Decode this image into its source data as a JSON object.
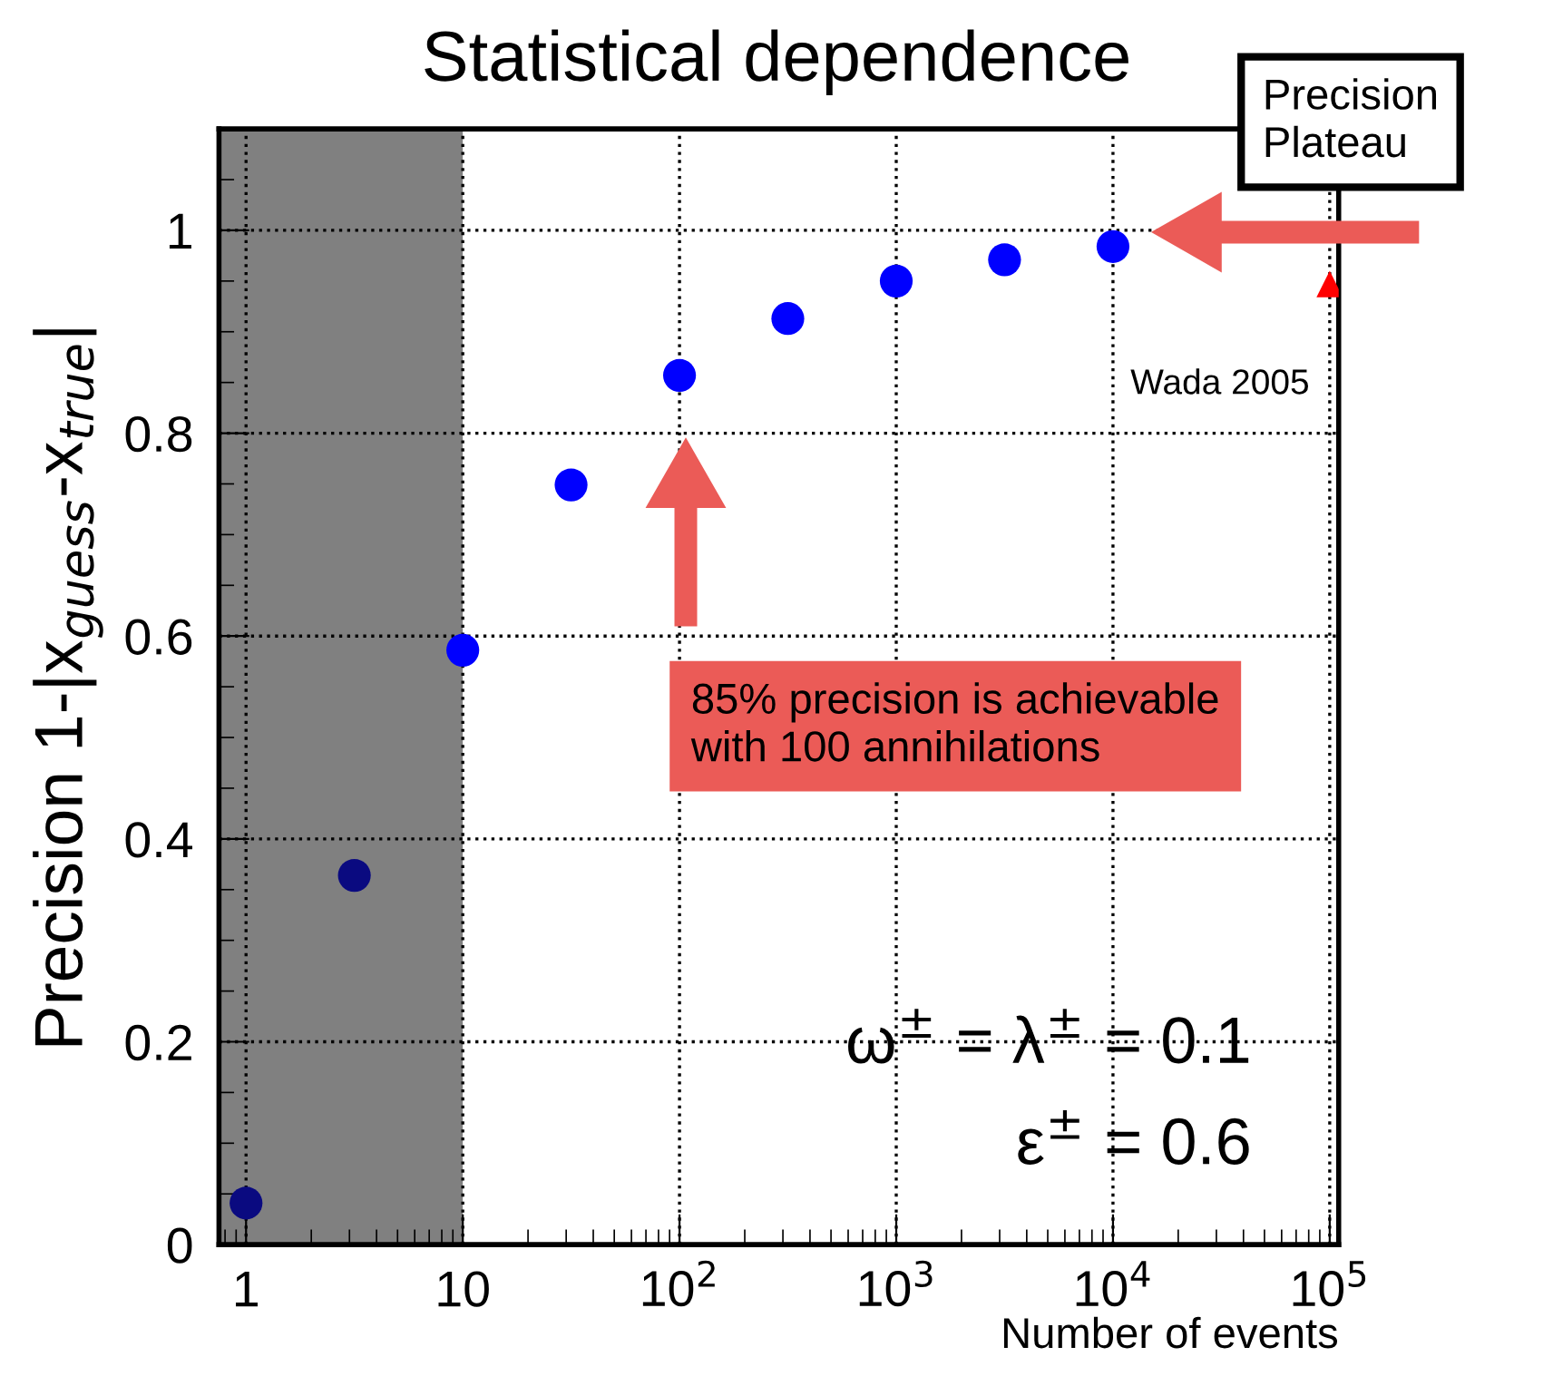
{
  "chart_data": {
    "type": "scatter",
    "title": "Statistical dependence",
    "xlabel": "Number of events",
    "ylabel": "Precision 1-|x$_{guess}$-x$_{true}$|",
    "log": "x",
    "grid": true,
    "marker": "circle",
    "xlim": [
      0.75,
      110000
    ],
    "xticks": [
      1,
      10,
      {
        "value": 100,
        "label": "10$^{2}$"
      },
      {
        "value": 1000,
        "label": "10$^{3}$"
      },
      {
        "value": 10000,
        "label": "10$^{4}$"
      },
      {
        "value": 100000,
        "label": "10$^{5}$"
      }
    ],
    "ylim": [
      0,
      1.1
    ],
    "yticks": [
      0,
      0.2,
      0.4,
      0.6,
      0.8,
      1
    ],
    "series": [
      {
        "x": [
          1,
          3.16,
          10,
          31.6,
          100,
          316,
          1000,
          3160,
          10000
        ],
        "values": [
          0.041,
          0.364,
          0.586,
          0.749,
          0.857,
          0.913,
          0.95,
          0.971,
          0.984
        ],
        "colors": [
          "#0a0a80",
          "#0a0a80",
          "#0000ff",
          "#0000ff",
          "#0000ff",
          "#0000ff",
          "#0000ff",
          "#0000ff",
          "#0000ff"
        ]
      },
      {
        "name": "Wada 2005",
        "x": [
          100000
        ],
        "values": [
          0.947
        ],
        "color": "#ff0000",
        "marker": "triangle"
      }
    ],
    "bands": [
      {
        "axis": "x",
        "from": 0.75,
        "to": 10,
        "color": "#808080"
      }
    ],
    "annotations": [
      "85% precision is achievable\nwith 100 annihilations",
      "Precision\nPlateau",
      "ω$^{±}$ = λ$^{±}$ = 0.1",
      "ε$^{±}$ = 0.6"
    ]
  }
}
